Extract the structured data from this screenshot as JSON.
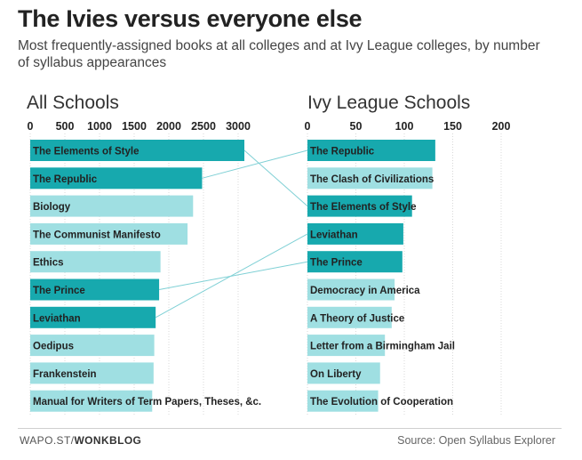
{
  "header": {
    "title": "The Ivies versus everyone else",
    "subtitle": "Most frequently-assigned books at all colleges and at Ivy League colleges, by number of syllabus appearances"
  },
  "footer": {
    "credit_prefix": "WAPO.ST/",
    "credit_brand": "WONKBLOG",
    "source": "Source: Open Syllabus Explorer"
  },
  "colors": {
    "highlight": "#17a9ae",
    "muted": "#9fdfe2",
    "connector": "#7fd0d5",
    "grid": "#d8d8d8",
    "text": "#222222"
  },
  "chart_data": [
    {
      "type": "bar",
      "orientation": "horizontal",
      "title": "All Schools",
      "xlim": [
        0,
        3000
      ],
      "ticks": [
        0,
        500,
        1000,
        1500,
        2000,
        2500,
        3000
      ],
      "categories": [
        "The Elements of Style",
        "The Republic",
        "Biology",
        "The Communist Manifesto",
        "Ethics",
        "The Prince",
        "Leviathan",
        "Oedipus",
        "Frankenstein",
        "Manual for Writers of Term Papers, Theses, &c."
      ],
      "values": [
        3090,
        2480,
        2350,
        2270,
        1880,
        1860,
        1810,
        1790,
        1780,
        1760
      ],
      "highlighted": [
        true,
        true,
        false,
        false,
        false,
        true,
        true,
        false,
        false,
        false
      ]
    },
    {
      "type": "bar",
      "orientation": "horizontal",
      "title": "Ivy League Schools",
      "xlim": [
        0,
        200
      ],
      "ticks": [
        0,
        50,
        100,
        150,
        200
      ],
      "categories": [
        "The Republic",
        "The Clash of Civilizations",
        "The Elements of Style",
        "Leviathan",
        "The Prince",
        "Democracy in America",
        "A Theory of Justice",
        "Letter from a Birmingham Jail",
        "On Liberty",
        "The Evolution of Cooperation"
      ],
      "values": [
        132,
        129,
        108,
        99,
        98,
        90,
        87,
        80,
        75,
        73
      ],
      "highlighted": [
        true,
        false,
        true,
        true,
        true,
        false,
        false,
        false,
        false,
        false
      ]
    }
  ]
}
